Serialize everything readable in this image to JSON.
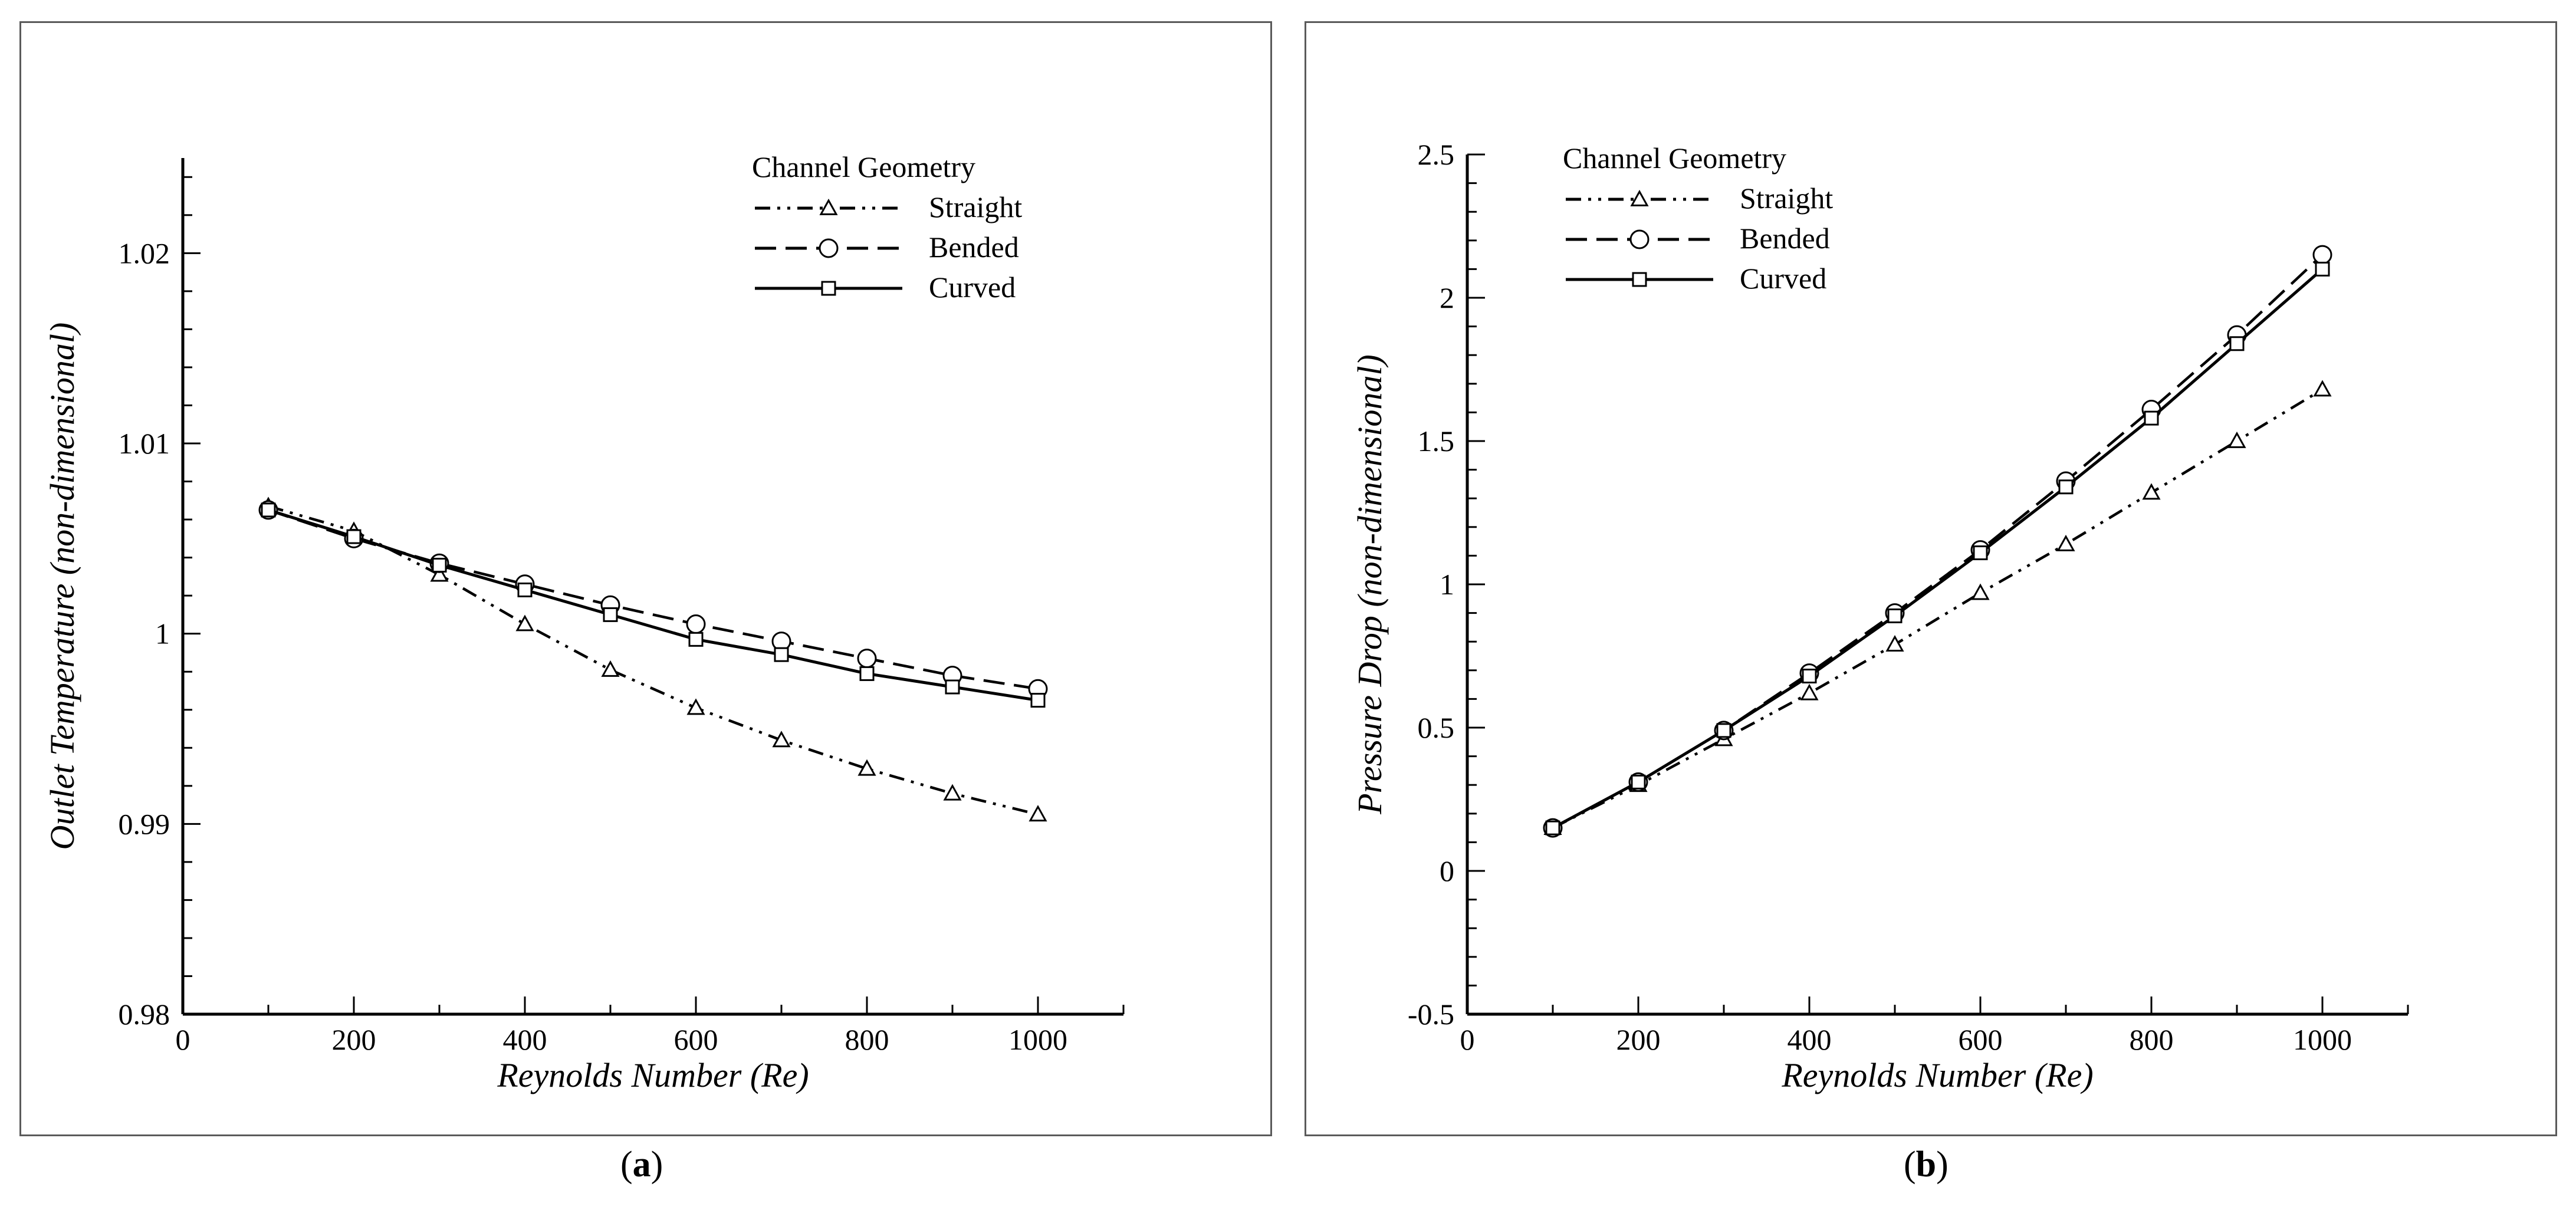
{
  "figure_labels": [
    "a",
    "b"
  ],
  "chart_data": [
    {
      "type": "line",
      "id": "a",
      "title": "",
      "xlabel": "Reynolds Number (Re)",
      "ylabel": "Outlet Temperature (non-dimensional)",
      "xlim": [
        0,
        1100
      ],
      "ylim": [
        0.98,
        1.025
      ],
      "xticks": [
        0,
        200,
        400,
        600,
        800,
        1000
      ],
      "xtick_labels": [
        "0",
        "200",
        "400",
        "600",
        "800",
        "1000"
      ],
      "yticks": [
        0.98,
        0.99,
        1.0,
        1.01,
        1.02
      ],
      "ytick_labels": [
        "0.98",
        "0.99",
        "1",
        "1.01",
        "1.02"
      ],
      "legend_title": "Channel Geometry",
      "legend_position": "top-right",
      "x": [
        100,
        200,
        300,
        400,
        500,
        600,
        700,
        800,
        900,
        1000
      ],
      "series": [
        {
          "name": "Straight",
          "style": "dash-dot-dot",
          "marker": "triangle",
          "values": [
            1.0067,
            1.0054,
            1.0031,
            1.0005,
            0.9981,
            0.9961,
            0.9944,
            0.9929,
            0.9916,
            0.9905
          ]
        },
        {
          "name": "Bended",
          "style": "dashed",
          "marker": "circle",
          "values": [
            1.0065,
            1.005,
            1.0037,
            1.0026,
            1.0015,
            1.0005,
            0.9996,
            0.9987,
            0.9978,
            0.9971
          ]
        },
        {
          "name": "Curved",
          "style": "solid",
          "marker": "square",
          "values": [
            1.0065,
            1.0051,
            1.0036,
            1.0023,
            1.001,
            0.9997,
            0.9989,
            0.9979,
            0.9972,
            0.9965
          ]
        }
      ]
    },
    {
      "type": "line",
      "id": "b",
      "title": "",
      "xlabel": "Reynolds Number (Re)",
      "ylabel": "Pressure Drop (non-dimensional)",
      "xlim": [
        0,
        1100
      ],
      "ylim": [
        -0.5,
        2.5
      ],
      "xticks": [
        0,
        200,
        400,
        600,
        800,
        1000
      ],
      "xtick_labels": [
        "0",
        "200",
        "400",
        "600",
        "800",
        "1000"
      ],
      "yticks": [
        -0.5,
        0,
        0.5,
        1,
        1.5,
        2,
        2.5
      ],
      "ytick_labels": [
        "-0.5",
        "0",
        "0.5",
        "1",
        "1.5",
        "2",
        "2.5"
      ],
      "legend_title": "Channel Geometry",
      "legend_position": "top-left",
      "x": [
        100,
        200,
        300,
        400,
        500,
        600,
        700,
        800,
        900,
        1000
      ],
      "series": [
        {
          "name": "Straight",
          "style": "dash-dot-dot",
          "marker": "triangle",
          "values": [
            0.15,
            0.3,
            0.46,
            0.62,
            0.79,
            0.97,
            1.14,
            1.32,
            1.5,
            1.68
          ]
        },
        {
          "name": "Bended",
          "style": "dashed",
          "marker": "circle",
          "values": [
            0.15,
            0.31,
            0.49,
            0.69,
            0.9,
            1.12,
            1.36,
            1.61,
            1.87,
            2.15
          ]
        },
        {
          "name": "Curved",
          "style": "solid",
          "marker": "square",
          "values": [
            0.15,
            0.31,
            0.49,
            0.68,
            0.89,
            1.11,
            1.34,
            1.58,
            1.84,
            2.1
          ]
        }
      ]
    }
  ]
}
